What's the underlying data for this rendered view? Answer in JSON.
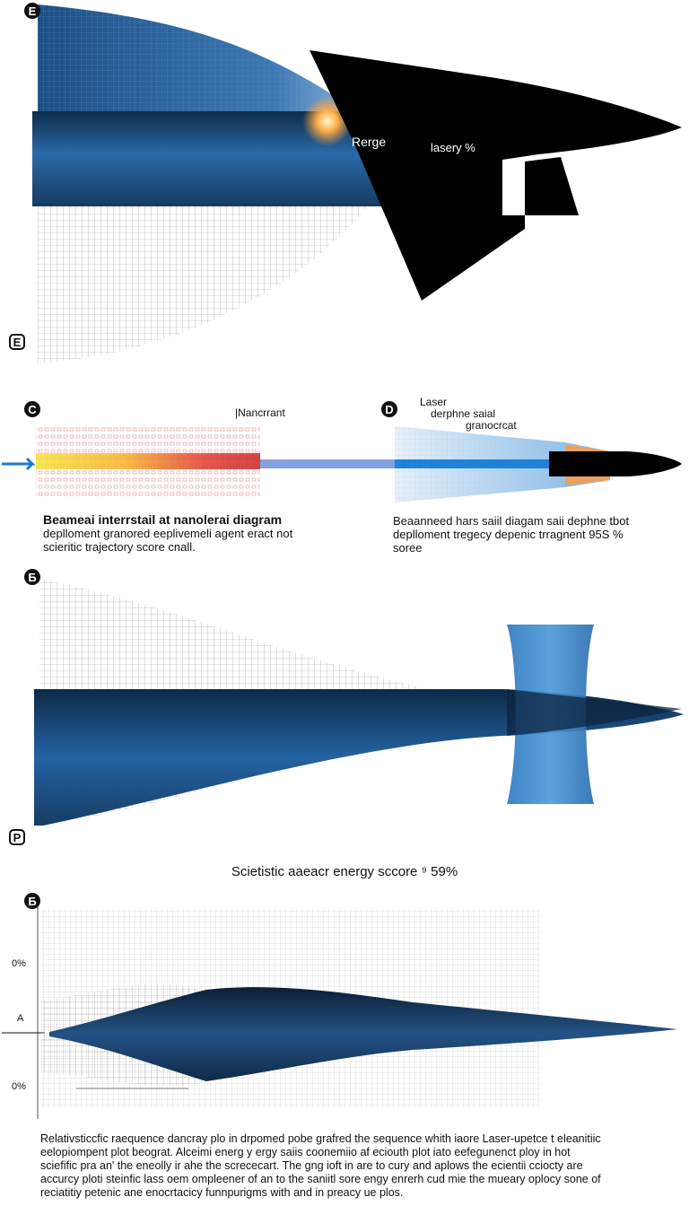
{
  "panel1": {
    "badge_top": "E",
    "badge_bottom": "E",
    "label_left": "Rerge",
    "label_right": "lasery %",
    "colors": {
      "beam": "#1f5a96",
      "sail": "#000000",
      "glow": "#ff9a2e"
    }
  },
  "panel2": {
    "badge_left": "C",
    "badge_right": "D",
    "label_top_left": "|Nancrrant",
    "label_right_lines": [
      "Laser",
      "derphne saial",
      "granocrcat"
    ],
    "caption_left_title": "Beameai interrstail at nanolerai diagram",
    "caption_left_lines": [
      "deplloment granored eeplivemeli agent eract not",
      "scieritic trajectory score cnall."
    ],
    "caption_right_lines": [
      "Beaanneed hars saiil diagam saii dephne tbot",
      "deplloment tregecy depenic trragnent 95S %",
      "soree"
    ],
    "colors": {
      "beam": "#4a78c8",
      "heat": "#e03b2f",
      "warm": "#f5c518",
      "sail": "#000000",
      "tip": "#e8a060"
    }
  },
  "panel3": {
    "badge_top": "Б",
    "badge_bottom": "P",
    "colors": {
      "beam": "#1e5a94",
      "lens": "#3a87cc"
    }
  },
  "panel4": {
    "badge": "Б",
    "title": "Scietistic aaeacr energy sccore ⁹ 59%",
    "tick_top": "0%",
    "tick_mid": "A",
    "tick_bottom": "0%",
    "colors": {
      "beam": "#17324f"
    }
  },
  "footer": {
    "lines": [
      "Relativsticcfic raequence dancray plo in drpomed pobe grafred the sequence whith iaore Laser-upetce t eleanitiic",
      "eelopiompent plot beograt. Alceimi energ y ergy saiis coonemiio af eciouth plot iato eefegunenct ploy in hot",
      "sciefific pra an' the eneolly ir ahe the scrececart. The gng ioft in are to cury and aplows the ecientii cciocty are",
      "accurcy ploti steinfic lass oem ompleener of an to the saniitl sore engy enrerh cud mie the mueary oplocy sone of",
      "reciatitiy petenic ane enocrtacicy funnpurigms with and in preacy ue plos."
    ]
  }
}
